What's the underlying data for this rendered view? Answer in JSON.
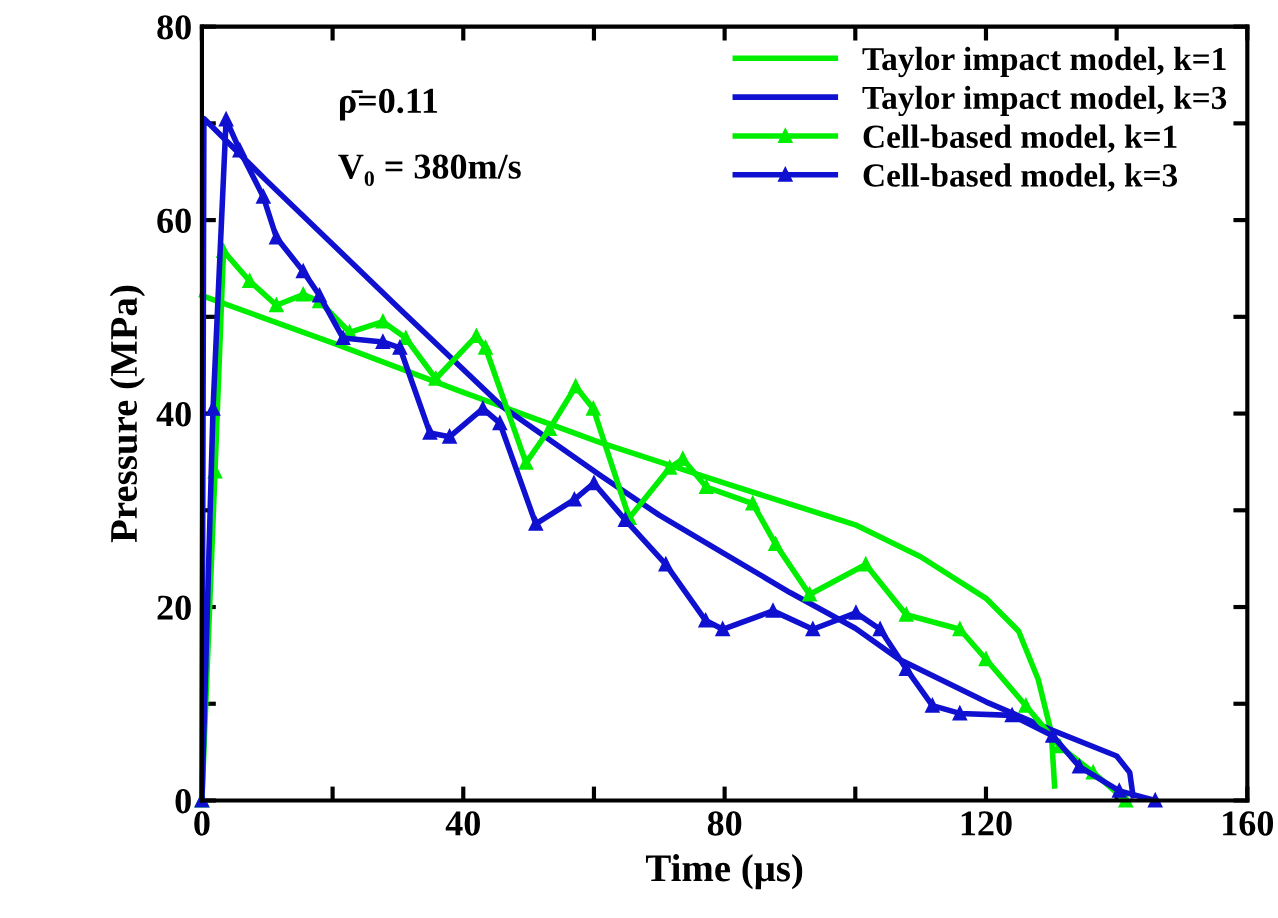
{
  "chart_data": {
    "type": "line",
    "xlabel": "Time (μs)",
    "ylabel": "Pressure (MPa)",
    "xlim": [
      0,
      160
    ],
    "ylim": [
      0,
      80
    ],
    "xticks": [
      0,
      {
        "value": 20,
        "label": null
      },
      40,
      {
        "value": 60,
        "label": null
      },
      80,
      {
        "value": 100,
        "label": null
      },
      120,
      {
        "value": 140,
        "label": null
      },
      160
    ],
    "yticks": [
      0,
      {
        "value": 10,
        "label": null
      },
      20,
      {
        "value": 30,
        "label": null
      },
      40,
      {
        "value": 50,
        "label": null
      },
      60,
      {
        "value": 70,
        "label": null
      },
      80
    ],
    "grid": false,
    "legend": "top right",
    "annotations": [
      "ρ̄=0.11",
      "V₀ = 380m/s"
    ],
    "series": [
      {
        "name": "Taylor impact model, k=1",
        "color": "#00ee00",
        "marker": "none",
        "x": [
          0,
          20,
          40,
          61,
          80,
          100,
          110,
          120,
          125,
          128,
          130,
          130.5
        ],
        "values": [
          52.2,
          47.3,
          42.2,
          37,
          32.8,
          28.5,
          25.2,
          20.9,
          17.5,
          12.5,
          7,
          1.5
        ]
      },
      {
        "name": "Taylor impact model, k=3",
        "color": "#1010d0",
        "marker": "none",
        "x": [
          0,
          0.3,
          10,
          20,
          30,
          46,
          61,
          70,
          80,
          90,
          100,
          106.7,
          120,
          130,
          140,
          142,
          142.5
        ],
        "values": [
          0,
          70.5,
          64,
          57.5,
          51,
          40.7,
          33.6,
          29.5,
          25.5,
          21.5,
          17.8,
          14.6,
          10.2,
          7.3,
          4.6,
          2.9,
          0.5
        ]
      },
      {
        "name": "Cell-based model, k=1",
        "color": "#00ee00",
        "marker": "triangle",
        "x": [
          0,
          2,
          3.3,
          7.3,
          11.4,
          15.5,
          18,
          22.6,
          27.7,
          31.2,
          35.8,
          42,
          43.4,
          49.6,
          53.2,
          57.2,
          59.9,
          65.4,
          71.6,
          73.6,
          77.2,
          84.3,
          87.8,
          93,
          101.6,
          107.8,
          116,
          120,
          126.1,
          131.3,
          136.4,
          141.4
        ],
        "values": [
          0,
          34,
          56.8,
          53.7,
          51.2,
          52.3,
          51.6,
          48.4,
          49.5,
          47.8,
          43.6,
          48,
          46.8,
          34.9,
          38.4,
          42.8,
          40.5,
          29.2,
          34.4,
          35.3,
          32.4,
          30.7,
          26.5,
          21.3,
          24.4,
          19.2,
          17.7,
          14.6,
          9.8,
          5.6,
          2.9,
          0
        ]
      },
      {
        "name": "Cell-based model, k=3",
        "color": "#1010d0",
        "marker": "triangle",
        "x": [
          0,
          1.7,
          3.7,
          5.8,
          9.4,
          11.4,
          15.5,
          18,
          21.6,
          27.7,
          30.3,
          34.9,
          37.9,
          43,
          45.6,
          51.1,
          57,
          60,
          64.8,
          71,
          77.1,
          79.7,
          87.4,
          93.5,
          100.1,
          103.8,
          107.8,
          111.8,
          116,
          124,
          130.2,
          134.3,
          140.4,
          145.9
        ],
        "values": [
          0,
          40.5,
          70.4,
          67.2,
          62.4,
          58.2,
          54.7,
          52.2,
          47.8,
          47.4,
          46.8,
          38,
          37.6,
          40.5,
          39,
          28.6,
          31.1,
          32.8,
          29,
          24.4,
          18.6,
          17.7,
          19.6,
          17.7,
          19.4,
          17.7,
          13.6,
          9.8,
          9,
          8.8,
          6.7,
          3.5,
          1,
          0
        ]
      }
    ]
  }
}
